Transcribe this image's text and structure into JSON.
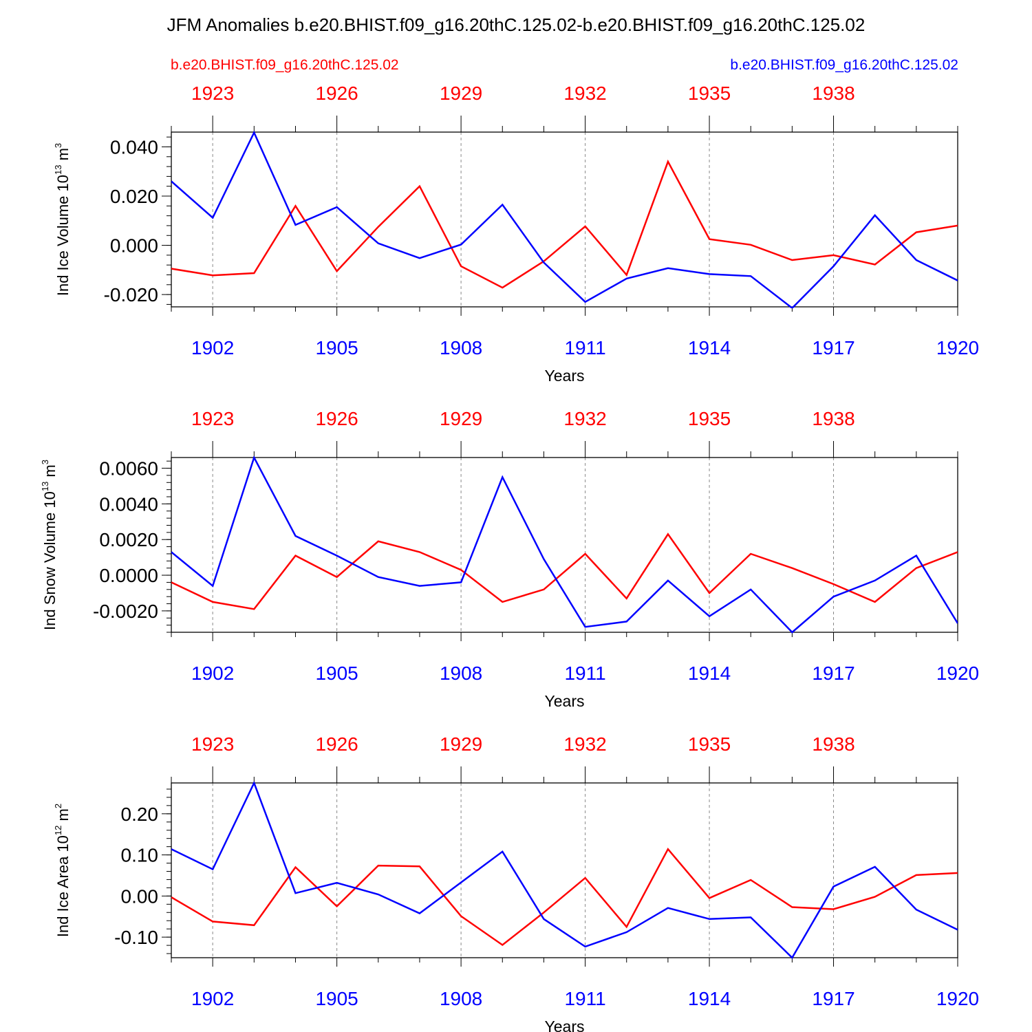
{
  "title": "JFM Anomalies b.e20.BHIST.f09_g16.20thC.125.02-b.e20.BHIST.f09_g16.20thC.125.02",
  "legend": {
    "red_label": "b.e20.BHIST.f09_g16.20thC.125.02",
    "blue_label": "b.e20.BHIST.f09_g16.20thC.125.02"
  },
  "colors": {
    "series_red": "#ff0000",
    "series_blue": "#0000ff",
    "axis": "#000000",
    "grid": "#888888"
  },
  "chart_data": [
    {
      "type": "line",
      "ylabel": "Ind Ice Volume 10",
      "ylabel_exp": "13",
      "ylabel_unit": " m",
      "ylabel_unit_exp": "3",
      "xlabel": "Years",
      "ylim": [
        -0.025,
        0.046
      ],
      "yticks": [
        -0.02,
        0.0,
        0.02,
        0.04
      ],
      "ytick_labels": [
        "-0.020",
        "0.000",
        "0.020",
        "0.040"
      ],
      "yminor_step": 0.004,
      "xticks_bottom": [
        1902,
        1905,
        1908,
        1911,
        1914,
        1917,
        1920
      ],
      "xticks_top": [
        1923,
        1926,
        1929,
        1932,
        1935,
        1938
      ],
      "x": [
        1901,
        1902,
        1903,
        1904,
        1905,
        1906,
        1907,
        1908,
        1909,
        1910,
        1911,
        1912,
        1913,
        1914,
        1915,
        1916,
        1917,
        1918,
        1919,
        1920
      ],
      "series": [
        {
          "name": "b.e20.BHIST.f09_g16.20thC.125.02",
          "color": "red",
          "values": [
            -0.0095,
            -0.0122,
            -0.0113,
            0.016,
            -0.0105,
            0.0075,
            0.024,
            -0.0085,
            -0.0172,
            -0.0065,
            0.0077,
            -0.012,
            0.034,
            0.0025,
            0.0002,
            -0.006,
            -0.004,
            -0.0078,
            0.0053,
            0.008
          ]
        },
        {
          "name": "b.e20.BHIST.f09_g16.20thC.125.02",
          "color": "blue",
          "values": [
            0.026,
            0.0112,
            0.0458,
            0.0083,
            0.0155,
            0.0008,
            -0.0052,
            0.0003,
            0.0165,
            -0.007,
            -0.023,
            -0.0135,
            -0.0093,
            -0.0117,
            -0.0125,
            -0.0255,
            -0.0085,
            0.0122,
            -0.006,
            -0.0143
          ]
        }
      ]
    },
    {
      "type": "line",
      "ylabel": "Ind Snow Volume 10",
      "ylabel_exp": "13",
      "ylabel_unit": " m",
      "ylabel_unit_exp": "3",
      "xlabel": "Years",
      "ylim": [
        -0.0032,
        0.0066
      ],
      "yticks": [
        -0.002,
        0.0,
        0.002,
        0.004,
        0.006
      ],
      "ytick_labels": [
        "-0.0020",
        "0.0000",
        "0.0020",
        "0.0040",
        "0.0060"
      ],
      "yminor_step": 0.0004,
      "xticks_bottom": [
        1902,
        1905,
        1908,
        1911,
        1914,
        1917,
        1920
      ],
      "xticks_top": [
        1923,
        1926,
        1929,
        1932,
        1935,
        1938
      ],
      "x": [
        1901,
        1902,
        1903,
        1904,
        1905,
        1906,
        1907,
        1908,
        1909,
        1910,
        1911,
        1912,
        1913,
        1914,
        1915,
        1916,
        1917,
        1918,
        1919,
        1920
      ],
      "series": [
        {
          "name": "b.e20.BHIST.f09_g16.20thC.125.02",
          "color": "red",
          "values": [
            -0.0004,
            -0.0015,
            -0.0019,
            0.0011,
            -0.0001,
            0.0019,
            0.0013,
            0.0003,
            -0.0015,
            -0.0008,
            0.0012,
            -0.0013,
            0.0023,
            -0.001,
            0.0012,
            0.0004,
            -0.0005,
            -0.0015,
            0.0004,
            0.0013
          ]
        },
        {
          "name": "b.e20.BHIST.f09_g16.20thC.125.02",
          "color": "blue",
          "values": [
            0.0013,
            -0.0006,
            0.0066,
            0.0022,
            0.0011,
            -0.0001,
            -0.0006,
            -0.0004,
            0.0055,
            0.0009,
            -0.0029,
            -0.0026,
            -0.0003,
            -0.0023,
            -0.0008,
            -0.0032,
            -0.0012,
            -0.0003,
            0.0011,
            -0.0027
          ]
        }
      ]
    },
    {
      "type": "line",
      "ylabel": "Ind Ice Area 10",
      "ylabel_exp": "12",
      "ylabel_unit": " m",
      "ylabel_unit_exp": "2",
      "xlabel": "Years",
      "ylim": [
        -0.15,
        0.275
      ],
      "yticks": [
        -0.1,
        0.0,
        0.1,
        0.2
      ],
      "ytick_labels": [
        "-0.10",
        "0.00",
        "0.10",
        "0.20"
      ],
      "yminor_step": 0.02,
      "xticks_bottom": [
        1902,
        1905,
        1908,
        1911,
        1914,
        1917,
        1920
      ],
      "xticks_top": [
        1923,
        1926,
        1929,
        1932,
        1935,
        1938
      ],
      "x": [
        1901,
        1902,
        1903,
        1904,
        1905,
        1906,
        1907,
        1908,
        1909,
        1910,
        1911,
        1912,
        1913,
        1914,
        1915,
        1916,
        1917,
        1918,
        1919,
        1920
      ],
      "series": [
        {
          "name": "b.e20.BHIST.f09_g16.20thC.125.02",
          "color": "red",
          "values": [
            -0.003,
            -0.062,
            -0.071,
            0.07,
            -0.025,
            0.074,
            0.072,
            -0.049,
            -0.119,
            -0.04,
            0.044,
            -0.075,
            0.114,
            -0.005,
            0.039,
            -0.027,
            -0.032,
            -0.002,
            0.051,
            0.056
          ]
        },
        {
          "name": "b.e20.BHIST.f09_g16.20thC.125.02",
          "color": "blue",
          "values": [
            0.114,
            0.065,
            0.275,
            0.007,
            0.032,
            0.004,
            -0.042,
            0.033,
            0.108,
            -0.056,
            -0.123,
            -0.088,
            -0.029,
            -0.056,
            -0.052,
            -0.15,
            0.023,
            0.071,
            -0.033,
            -0.082
          ]
        }
      ]
    }
  ]
}
